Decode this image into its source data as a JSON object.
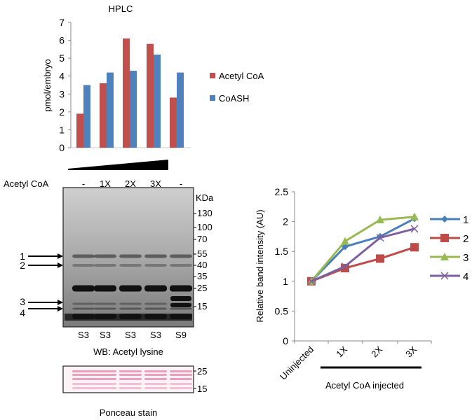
{
  "chart_data": [
    {
      "type": "bar",
      "title": "HPLC",
      "ylabel": "pmol/embryo",
      "xlabel": "",
      "ylim": [
        0,
        7
      ],
      "yticks": [
        "0",
        "1",
        "2",
        "3",
        "4",
        "5",
        "6",
        "7"
      ],
      "categories": [
        "",
        "",
        "",
        "",
        ""
      ],
      "series": [
        {
          "name": "Acetyl CoA",
          "color": "#C0504D",
          "values": [
            1.9,
            3.6,
            6.1,
            5.8,
            2.8
          ]
        },
        {
          "name": "CoASH",
          "color": "#4F81BD",
          "values": [
            3.5,
            4.2,
            4.3,
            5.2,
            4.2
          ]
        }
      ],
      "legend": "right",
      "grid": false
    },
    {
      "type": "line",
      "ylabel": "Relative band intensity (AU)",
      "xlabel": "Acetyl CoA injected",
      "ylim": [
        0,
        2.5
      ],
      "yticks": [
        "0",
        "0.5",
        "1",
        "1.5",
        "2",
        "2.5"
      ],
      "categories": [
        "Uninjected",
        "1X",
        "2X",
        "3X"
      ],
      "series": [
        {
          "name": "1",
          "color": "#4A7EBB",
          "marker": "diamond",
          "values": [
            1.0,
            1.58,
            1.75,
            2.05
          ]
        },
        {
          "name": "2",
          "color": "#BE4B48",
          "marker": "square",
          "values": [
            1.0,
            1.22,
            1.38,
            1.57
          ]
        },
        {
          "name": "3",
          "color": "#98B954",
          "marker": "triangle",
          "values": [
            1.0,
            1.67,
            2.03,
            2.08
          ]
        },
        {
          "name": "4",
          "color": "#7D60A0",
          "marker": "x",
          "values": [
            1.0,
            1.25,
            1.73,
            1.88
          ]
        }
      ],
      "legend": "right",
      "grid": false
    }
  ],
  "blot": {
    "row_label": "Acetyl CoA",
    "lanes_treatment": [
      "-",
      "1X",
      "2X",
      "3X",
      "-"
    ],
    "lanes_fraction": [
      "S3",
      "S3",
      "S3",
      "S3",
      "S9"
    ],
    "kda_title": "KDa",
    "kda_markers": [
      "130",
      "100",
      "70",
      "55",
      "40",
      "35",
      "25",
      "15"
    ],
    "band_arrows": [
      "1",
      "2",
      "3",
      "4"
    ],
    "caption": "WB: Acetyl lysine",
    "ponceau_markers": [
      "25",
      "15"
    ],
    "ponceau_caption": "Ponceau stain"
  }
}
